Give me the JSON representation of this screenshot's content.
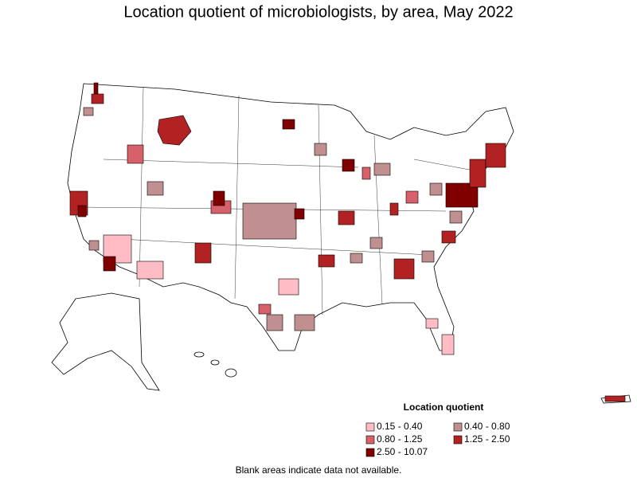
{
  "title": "Location quotient of microbiologists, by area, May 2022",
  "legend": {
    "title": "Location quotient",
    "items": [
      {
        "label": "0.15 - 0.40",
        "color": "#ffbcc4"
      },
      {
        "label": "0.40 - 0.80",
        "color": "#c09090"
      },
      {
        "label": "0.80 - 1.25",
        "color": "#d8606a"
      },
      {
        "label": "1.25 - 2.50",
        "color": "#b22222"
      },
      {
        "label": "2.50 - 10.07",
        "color": "#800000"
      }
    ]
  },
  "footnote": "Blank areas indicate data not available."
}
